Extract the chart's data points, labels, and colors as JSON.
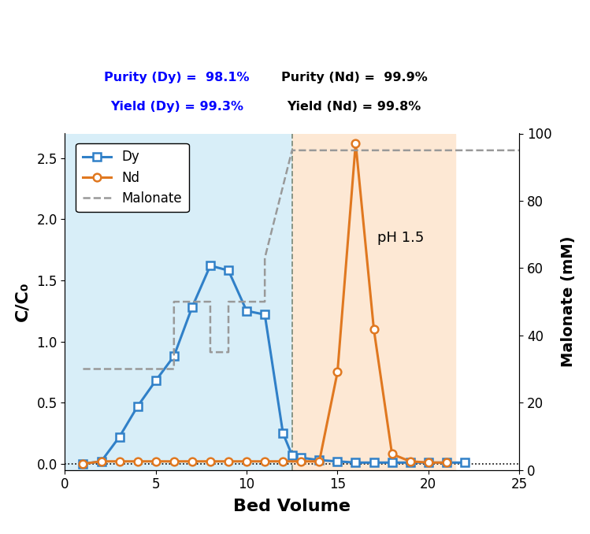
{
  "dy_x": [
    1,
    2,
    3,
    4,
    5,
    6,
    7,
    8,
    9,
    10,
    11,
    12,
    12.5,
    13,
    14,
    15,
    16,
    17,
    18,
    19,
    20,
    21,
    22
  ],
  "dy_y": [
    0.0,
    0.02,
    0.22,
    0.47,
    0.68,
    0.88,
    1.28,
    1.62,
    1.58,
    1.25,
    1.22,
    0.25,
    0.07,
    0.05,
    0.03,
    0.02,
    0.01,
    0.01,
    0.01,
    0.01,
    0.01,
    0.01,
    0.01
  ],
  "nd_x": [
    1,
    2,
    3,
    4,
    5,
    6,
    7,
    8,
    9,
    10,
    11,
    12,
    13,
    14,
    15,
    16,
    17,
    18,
    19,
    20,
    21
  ],
  "nd_y": [
    0.0,
    0.02,
    0.02,
    0.02,
    0.02,
    0.02,
    0.02,
    0.02,
    0.02,
    0.02,
    0.02,
    0.02,
    0.02,
    0.02,
    0.75,
    2.62,
    1.1,
    0.08,
    0.02,
    0.01,
    0.01
  ],
  "malonate_x": [
    1,
    6,
    6,
    8,
    8,
    9,
    9,
    11,
    11,
    12.5,
    12.5,
    25
  ],
  "malonate_y_mM": [
    30,
    30,
    50,
    50,
    35,
    35,
    50,
    50,
    63,
    95,
    95,
    95
  ],
  "dy_color": "#3080C8",
  "nd_color": "#E07820",
  "malonate_color": "#999999",
  "blue_bg_color": "#d8eef8",
  "orange_bg_color": "#fde8d4",
  "vline_x": 12.5,
  "blue_bg_xmin": 0,
  "blue_bg_xmax": 12.5,
  "orange_bg_xmin": 12.5,
  "orange_bg_xmax": 21.5,
  "xlim": [
    0,
    25
  ],
  "ylim": [
    -0.05,
    2.7
  ],
  "y2lim": [
    0,
    100
  ],
  "xlabel": "Bed Volume",
  "ylabel": "C/C₀",
  "y2label": "Malonate (mM)",
  "title_dy_purity": "Purity (Dy) =  98.1%",
  "title_dy_yield": "Yield (Dy) = 99.3%",
  "title_nd_purity": "Purity (Nd) =  99.9%",
  "title_nd_yield": "Yield (Nd) = 99.8%",
  "ph_label": "pH 1.5",
  "legend_dy": "Dy",
  "legend_nd": "Nd",
  "legend_malonate": "Malonate",
  "xticks": [
    0,
    5,
    10,
    15,
    20,
    25
  ],
  "yticks": [
    0.0,
    0.5,
    1.0,
    1.5,
    2.0,
    2.5
  ],
  "y2ticks": [
    0,
    20,
    40,
    60,
    80,
    100
  ],
  "black_bar_color": "#000000"
}
